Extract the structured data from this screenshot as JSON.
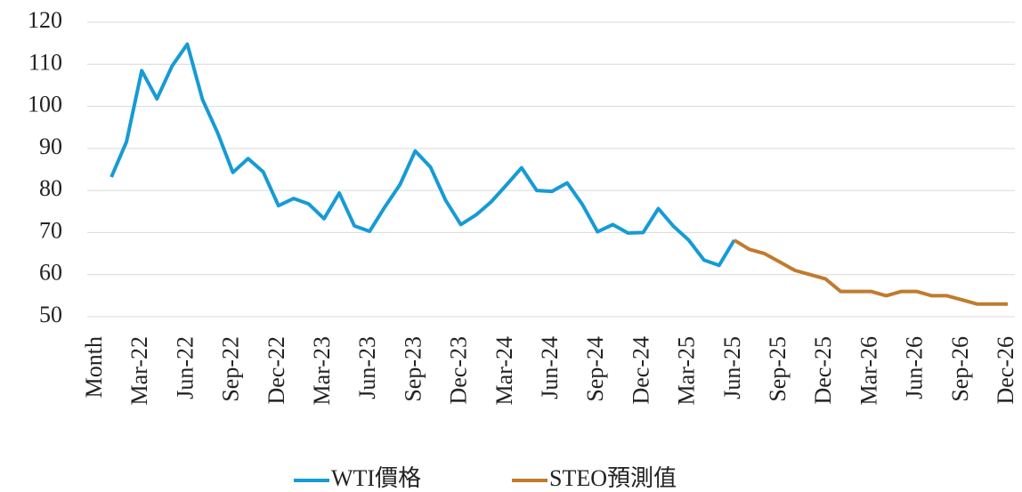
{
  "chart_data": {
    "type": "line",
    "categories": [
      "Month",
      null,
      null,
      "Mar-22",
      null,
      null,
      "Jun-22",
      null,
      null,
      "Sep-22",
      null,
      null,
      "Dec-22",
      null,
      null,
      "Mar-23",
      null,
      null,
      "Jun-23",
      null,
      null,
      "Sep-23",
      null,
      null,
      "Dec-23",
      null,
      null,
      "Mar-24",
      null,
      null,
      "Jun-24",
      null,
      null,
      "Sep-24",
      null,
      null,
      "Dec-24",
      null,
      null,
      "Mar-25",
      null,
      null,
      "Jun-25",
      null,
      null,
      "Sep-25",
      null,
      null,
      "Dec-25",
      null,
      null,
      "Mar-26",
      null,
      null,
      "Jun-26",
      null,
      null,
      "Sep-26",
      null,
      null,
      "Dec-26"
    ],
    "series": [
      {
        "name": "WTI價格",
        "color": "#169bd5",
        "values": [
          null,
          83.2,
          91.6,
          108.5,
          101.8,
          109.6,
          114.8,
          101.6,
          93.7,
          84.3,
          87.6,
          84.4,
          76.4,
          78.1,
          76.8,
          73.3,
          79.4,
          71.6,
          70.3,
          76.1,
          81.4,
          89.4,
          85.6,
          77.7,
          71.9,
          74.2,
          77.3,
          81.3,
          85.4,
          80.0,
          79.8,
          81.8,
          76.7,
          70.2,
          71.9,
          69.9,
          70.0,
          75.7,
          71.5,
          68.2,
          63.5,
          62.2,
          68.2,
          null,
          null,
          null,
          null,
          null,
          null,
          null,
          null,
          null,
          null,
          null,
          null,
          null,
          null,
          null,
          null,
          null,
          null
        ]
      },
      {
        "name": "STEO預測值",
        "color": "#c07b2e",
        "values": [
          null,
          null,
          null,
          null,
          null,
          null,
          null,
          null,
          null,
          null,
          null,
          null,
          null,
          null,
          null,
          null,
          null,
          null,
          null,
          null,
          null,
          null,
          null,
          null,
          null,
          null,
          null,
          null,
          null,
          null,
          null,
          null,
          null,
          null,
          null,
          null,
          null,
          null,
          null,
          null,
          null,
          null,
          68.2,
          66,
          65,
          63,
          61,
          60,
          59,
          56,
          56,
          56,
          55,
          56,
          56,
          55,
          55,
          54,
          53,
          53,
          53
        ]
      }
    ],
    "ylim": [
      50,
      120
    ],
    "yticks": [
      50,
      60,
      70,
      80,
      90,
      100,
      110,
      120
    ],
    "grid": true,
    "legend": "bottom"
  }
}
